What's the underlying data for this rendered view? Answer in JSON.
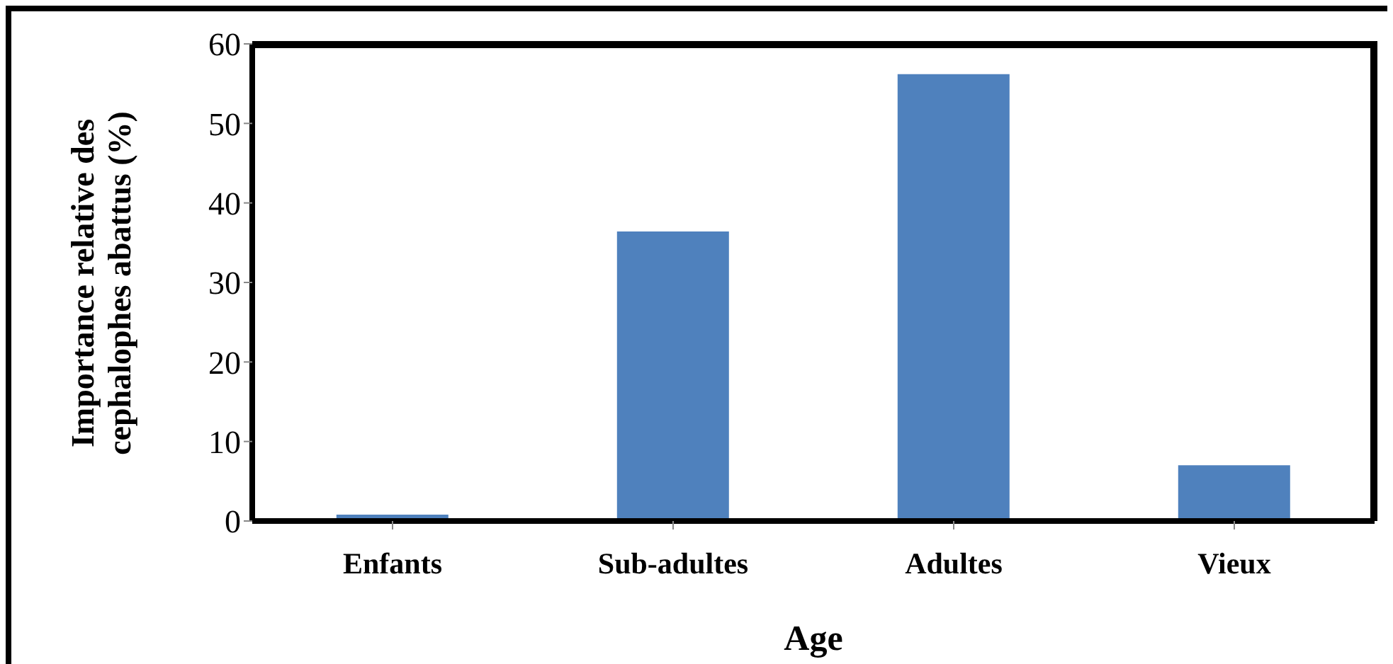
{
  "chart_data": {
    "type": "bar",
    "xlabel": "Age",
    "ylabel": "Importance relative des cephalophes abattus (%)",
    "categories": [
      "Enfants",
      "Sub-adultes",
      "Adultes",
      "Vieux"
    ],
    "values": [
      0.8,
      36.4,
      56.2,
      7.0
    ],
    "color": "#4f81bd",
    "ylim": [
      0,
      60
    ],
    "yticks": [
      0,
      10,
      20,
      30,
      40,
      50,
      60
    ],
    "grid": false
  }
}
